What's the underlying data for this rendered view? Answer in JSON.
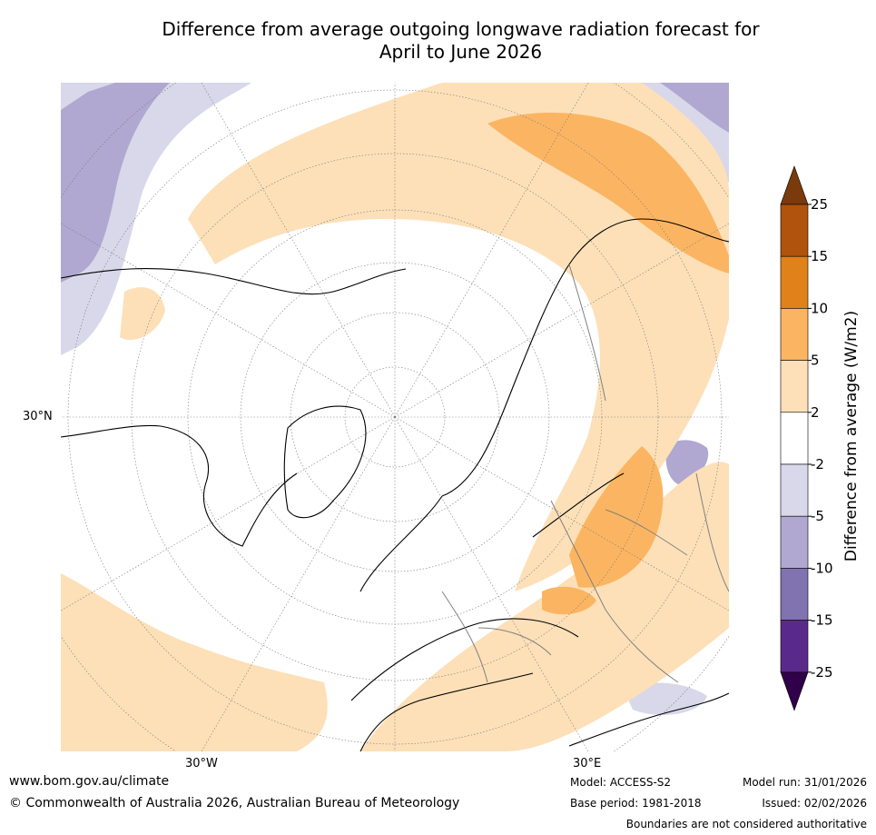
{
  "title": {
    "line1": "Difference from average outgoing longwave radiation forecast for",
    "line2": "April to June 2026"
  },
  "map_labels": {
    "lat_30n": "30°N",
    "lon_30w": "30°W",
    "lon_30e": "30°E"
  },
  "colorbar": {
    "label": "Difference from average (W/m2)",
    "ticks": [
      "25",
      "15",
      "10",
      "5",
      "2",
      "-2",
      "-5",
      "-10",
      "-15",
      "-25"
    ],
    "colors": [
      "#7a3a0b",
      "#b0530d",
      "#e0821a",
      "#fbb562",
      "#fde0b8",
      "#ffffff",
      "#d8d8ea",
      "#b0a8d0",
      "#8073b0",
      "#5a2a8a",
      "#30004a"
    ]
  },
  "footer": {
    "website": "www.bom.gov.au/climate",
    "copyright": "© Commonwealth of Australia 2026, Australian Bureau of Meteorology",
    "model": "Model: ACCESS-S2",
    "base_period": "Base period: 1981-2018",
    "model_run": "Model run: 31/01/2026",
    "issued": "Issued: 02/02/2026",
    "disclaimer": "Boundaries are not considered authoritative"
  }
}
